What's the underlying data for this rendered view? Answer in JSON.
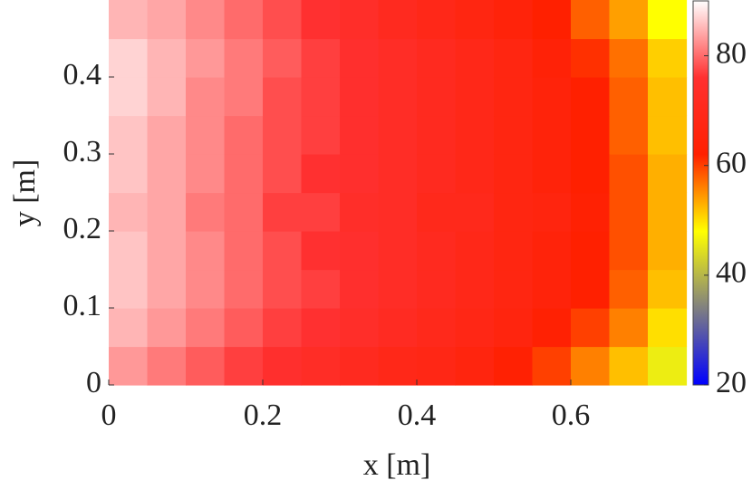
{
  "chart_data": {
    "type": "heatmap",
    "x_label": "x [m]",
    "y_label": "y [m]",
    "x": [
      0.025,
      0.075,
      0.125,
      0.175,
      0.225,
      0.275,
      0.325,
      0.375,
      0.425,
      0.475,
      0.525,
      0.575,
      0.625,
      0.675,
      0.725
    ],
    "y": [
      0.025,
      0.075,
      0.125,
      0.175,
      0.225,
      0.275,
      0.325,
      0.375,
      0.425,
      0.475
    ],
    "z": [
      [
        83,
        81,
        79,
        77,
        75,
        73,
        71,
        69,
        68,
        66,
        63,
        60,
        56,
        52,
        46
      ],
      [
        85,
        83,
        81,
        79,
        77,
        76,
        74,
        72,
        70,
        68,
        66,
        63,
        60,
        56,
        50
      ],
      [
        86,
        84,
        82,
        80,
        78,
        77,
        75,
        73,
        71,
        69,
        67,
        65,
        62,
        58,
        52
      ],
      [
        86,
        84,
        82,
        80,
        78,
        76,
        75,
        73,
        71,
        69,
        67,
        65,
        62,
        59,
        53
      ],
      [
        85,
        84,
        81,
        80,
        77,
        77,
        74,
        73,
        70,
        70,
        67,
        66,
        63,
        59,
        53
      ],
      [
        86,
        84,
        82,
        80,
        78,
        76,
        75,
        73,
        71,
        69,
        67,
        65,
        62,
        59,
        53
      ],
      [
        86,
        84,
        82,
        80,
        78,
        77,
        75,
        73,
        71,
        69,
        67,
        65,
        62,
        58,
        52
      ],
      [
        87,
        85,
        82,
        81,
        78,
        77,
        75,
        73,
        71,
        69,
        67,
        65,
        62,
        58,
        52
      ],
      [
        87,
        85,
        83,
        81,
        79,
        77,
        75,
        73,
        71,
        69,
        67,
        64,
        61,
        57,
        51
      ],
      [
        85,
        84,
        82,
        80,
        78,
        76,
        74,
        71,
        69,
        67,
        65,
        62,
        58,
        54,
        48
      ]
    ],
    "xlim": [
      0,
      0.75
    ],
    "ylim": [
      0,
      0.5
    ],
    "xticks": [
      0,
      0.2,
      0.4,
      0.6
    ],
    "yticks": [
      0,
      0.1,
      0.2,
      0.3,
      0.4
    ],
    "clim": [
      20,
      90
    ],
    "cticks": [
      20,
      40,
      60,
      80
    ],
    "colormap": [
      "#0000ff",
      "#808080",
      "#ffff00",
      "#ff2000",
      "#ff3030",
      "#ffffff"
    ]
  }
}
